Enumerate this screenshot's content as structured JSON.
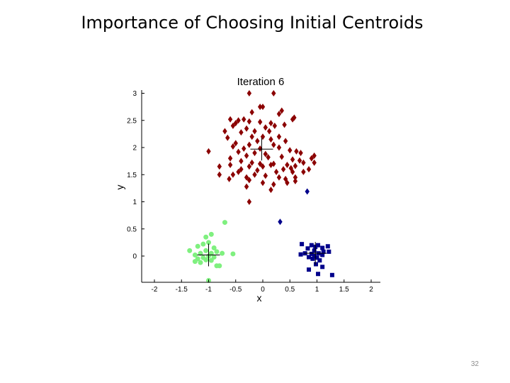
{
  "slide": {
    "title": "Importance of Choosing Initial Centroids",
    "page_number": "32"
  },
  "chart_data": {
    "type": "scatter",
    "title": "Iteration 6",
    "xlabel": "x",
    "ylabel": "y",
    "xlim": [
      -2.2,
      2.2
    ],
    "ylim": [
      -0.45,
      3.05
    ],
    "xticks": [
      -2,
      -1.5,
      -1,
      -0.5,
      0,
      0.5,
      1,
      1.5,
      2
    ],
    "xtick_labels": [
      "-2",
      "-1.5",
      "-1",
      "-0.5",
      "0",
      "0.5",
      "1",
      "1.5",
      "2"
    ],
    "yticks": [
      0,
      0.5,
      1,
      1.5,
      2,
      2.5,
      3
    ],
    "ytick_labels": [
      "0",
      "0.5",
      "1",
      "1.5",
      "2",
      "2.5",
      "3"
    ],
    "grid": false,
    "series": [
      {
        "marker": "diamond",
        "color": "#8b0000",
        "points": [
          [
            -0.25,
            3.0
          ],
          [
            0.2,
            3.0
          ],
          [
            -0.05,
            2.75
          ],
          [
            0.0,
            2.75
          ],
          [
            0.35,
            2.68
          ],
          [
            0.3,
            2.62
          ],
          [
            -0.2,
            2.65
          ],
          [
            0.58,
            2.55
          ],
          [
            0.55,
            2.52
          ],
          [
            -0.6,
            2.52
          ],
          [
            -0.45,
            2.5
          ],
          [
            -0.35,
            2.52
          ],
          [
            -0.5,
            2.45
          ],
          [
            -0.25,
            2.48
          ],
          [
            -0.05,
            2.47
          ],
          [
            0.15,
            2.45
          ],
          [
            0.22,
            2.4
          ],
          [
            0.4,
            2.42
          ],
          [
            -0.55,
            2.4
          ],
          [
            -0.3,
            2.35
          ],
          [
            0.05,
            2.37
          ],
          [
            -0.15,
            2.3
          ],
          [
            0.12,
            2.3
          ],
          [
            -0.4,
            2.28
          ],
          [
            -0.2,
            2.2
          ],
          [
            0.0,
            2.2
          ],
          [
            0.3,
            2.2
          ],
          [
            -0.65,
            2.18
          ],
          [
            -0.1,
            2.12
          ],
          [
            0.15,
            2.15
          ],
          [
            0.42,
            2.12
          ],
          [
            -0.5,
            2.08
          ],
          [
            -0.25,
            2.05
          ],
          [
            0.2,
            2.05
          ],
          [
            -0.55,
            2.02
          ],
          [
            -0.35,
            1.98
          ],
          [
            -0.05,
            1.98
          ],
          [
            0.3,
            2.0
          ],
          [
            0.5,
            1.95
          ],
          [
            -1.0,
            1.93
          ],
          [
            -0.45,
            1.92
          ],
          [
            -0.15,
            1.9
          ],
          [
            0.05,
            1.88
          ],
          [
            0.62,
            1.93
          ],
          [
            0.7,
            1.9
          ],
          [
            0.9,
            1.8
          ],
          [
            0.95,
            1.85
          ],
          [
            -0.3,
            1.85
          ],
          [
            0.1,
            1.82
          ],
          [
            0.35,
            1.83
          ],
          [
            -0.6,
            1.8
          ],
          [
            0.55,
            1.78
          ],
          [
            0.68,
            1.76
          ],
          [
            -0.4,
            1.75
          ],
          [
            -0.2,
            1.72
          ],
          [
            0.2,
            1.7
          ],
          [
            -0.05,
            1.7
          ],
          [
            0.45,
            1.68
          ],
          [
            0.75,
            1.72
          ],
          [
            0.95,
            1.72
          ],
          [
            -0.6,
            1.68
          ],
          [
            -0.25,
            1.65
          ],
          [
            0.0,
            1.65
          ],
          [
            0.15,
            1.68
          ],
          [
            0.38,
            1.6
          ],
          [
            0.52,
            1.62
          ],
          [
            0.6,
            1.66
          ],
          [
            0.85,
            1.6
          ],
          [
            -0.4,
            1.6
          ],
          [
            -0.1,
            1.58
          ],
          [
            0.25,
            1.55
          ],
          [
            -0.55,
            1.5
          ],
          [
            -0.3,
            1.45
          ],
          [
            0.05,
            1.48
          ],
          [
            0.3,
            1.45
          ],
          [
            0.6,
            1.45
          ],
          [
            -0.62,
            1.42
          ],
          [
            -0.25,
            1.4
          ],
          [
            0.0,
            1.35
          ],
          [
            0.45,
            1.35
          ],
          [
            0.2,
            1.32
          ],
          [
            -0.3,
            1.28
          ],
          [
            0.15,
            1.22
          ],
          [
            -0.25,
            1.0
          ],
          [
            0.6,
            1.38
          ],
          [
            0.42,
            1.42
          ],
          [
            -0.45,
            1.55
          ],
          [
            0.55,
            1.55
          ],
          [
            0.75,
            1.55
          ],
          [
            -0.15,
            1.5
          ],
          [
            -0.8,
            1.65
          ],
          [
            -0.8,
            1.5
          ],
          [
            -0.7,
            2.3
          ]
        ]
      },
      {
        "marker": "circle",
        "color": "#7ff07f",
        "points": [
          [
            -0.7,
            0.62
          ],
          [
            -1.05,
            0.35
          ],
          [
            -0.95,
            0.4
          ],
          [
            -1.0,
            0.25
          ],
          [
            -1.1,
            0.22
          ],
          [
            -1.2,
            0.18
          ],
          [
            -0.9,
            0.15
          ],
          [
            -1.35,
            0.1
          ],
          [
            -1.05,
            0.1
          ],
          [
            -0.85,
            0.08
          ],
          [
            -0.95,
            0.05
          ],
          [
            -1.15,
            0.05
          ],
          [
            -0.75,
            0.05
          ],
          [
            -0.55,
            0.04
          ],
          [
            -1.25,
            0.02
          ],
          [
            -1.0,
            0.0
          ],
          [
            -0.9,
            -0.02
          ],
          [
            -1.1,
            -0.03
          ],
          [
            -1.2,
            -0.05
          ],
          [
            -1.05,
            -0.07
          ],
          [
            -0.95,
            -0.08
          ],
          [
            -1.25,
            -0.1
          ],
          [
            -1.15,
            -0.12
          ],
          [
            -0.85,
            -0.18
          ],
          [
            -0.8,
            -0.18
          ],
          [
            -1.0,
            -0.45
          ]
        ]
      },
      {
        "marker": "square",
        "color": "#00008b",
        "points": [
          [
            0.72,
            0.22
          ],
          [
            0.9,
            0.2
          ],
          [
            1.02,
            0.2
          ],
          [
            0.97,
            0.17
          ],
          [
            1.1,
            0.15
          ],
          [
            0.83,
            0.14
          ],
          [
            1.2,
            0.18
          ],
          [
            1.12,
            0.08
          ],
          [
            0.95,
            0.1
          ],
          [
            1.22,
            0.08
          ],
          [
            0.78,
            0.05
          ],
          [
            0.9,
            0.04
          ],
          [
            1.03,
            0.05
          ],
          [
            0.7,
            0.03
          ],
          [
            0.95,
            0.0
          ],
          [
            1.1,
            0.02
          ],
          [
            0.85,
            -0.02
          ],
          [
            1.0,
            -0.03
          ],
          [
            0.92,
            -0.05
          ],
          [
            1.05,
            -0.08
          ],
          [
            0.98,
            -0.15
          ],
          [
            0.85,
            -0.25
          ],
          [
            1.1,
            -0.2
          ],
          [
            1.02,
            -0.33
          ],
          [
            1.28,
            -0.35
          ]
        ]
      },
      {
        "marker": "diamond",
        "color": "#00008b",
        "points": [
          [
            0.32,
            0.63
          ],
          [
            0.82,
            1.19
          ]
        ]
      }
    ],
    "centroids": [
      [
        -0.02,
        1.97
      ],
      [
        -1.0,
        0.02
      ],
      [
        0.97,
        0.05
      ]
    ]
  }
}
